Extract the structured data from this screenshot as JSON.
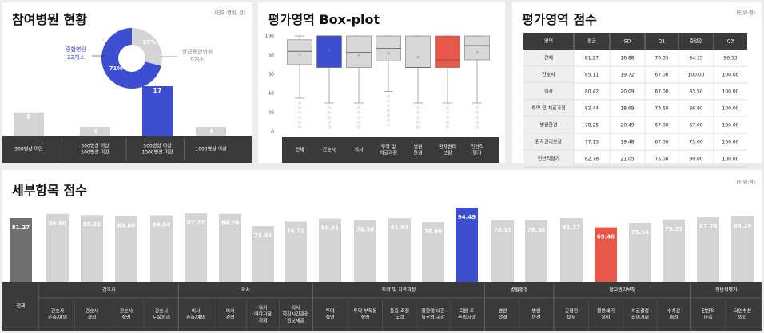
{
  "colors": {
    "blue": "#3d4fd1",
    "red": "#e9574a",
    "gray": "#d4d4d4",
    "dark": "#3a3a3a",
    "overall": "#707070"
  },
  "hospitals": {
    "title": "참여병원 현황",
    "unit": "(단위:병원, 건)",
    "donut_labels": {
      "general_name": "종합병원",
      "general_count": "22개소",
      "tertiary_name": "상급종합병원",
      "tertiary_count": "9개소",
      "general_pct": "71%",
      "tertiary_pct": "29%"
    }
  },
  "boxplot": {
    "title": "평가영역 Box-plot",
    "y_ticks": [
      "100",
      "80",
      "60",
      "40",
      "20",
      "0"
    ]
  },
  "score_table": {
    "title": "평가영역 점수",
    "unit": "(단위:점)",
    "columns": [
      "영역",
      "평균",
      "SD",
      "Q1",
      "중앙값",
      "Q3"
    ],
    "rows": [
      [
        "전체",
        "81.27",
        "16.88",
        "70.05",
        "84.15",
        "96.53"
      ],
      [
        "간호사",
        "85.11",
        "19.72",
        "67.00",
        "100.00",
        "100.00"
      ],
      [
        "의사",
        "80.42",
        "20.09",
        "67.00",
        "83.50",
        "100.00"
      ],
      [
        "투약 및 치료과정",
        "82.44",
        "18.69",
        "73.60",
        "86.80",
        "100.00"
      ],
      [
        "병원환경",
        "78.25",
        "20.49",
        "67.00",
        "67.00",
        "100.00"
      ],
      [
        "환자권리보장",
        "77.15",
        "19.48",
        "67.00",
        "75.00",
        "100.00"
      ],
      [
        "전반적평가",
        "82.78",
        "21.05",
        "75.00",
        "90.00",
        "100.00"
      ]
    ]
  },
  "detail": {
    "title": "세부항목 점수",
    "unit": "(단위:점)",
    "overall_label": "전체",
    "groups": [
      "간호사",
      "의사",
      "투약 및 치료과정",
      "병원환경",
      "환자권리보장",
      "전반적평가"
    ]
  },
  "chart_data": [
    {
      "type": "bar",
      "title": "참여병원 현황",
      "categories": [
        "300병상 미만",
        "300병상 이상 500병상 미만",
        "500병상 이상 1000병상 미만",
        "1000병상 이상"
      ],
      "values": [
        8,
        3,
        17,
        3
      ],
      "highlight": "500병상 이상 1000병상 미만"
    },
    {
      "type": "pie",
      "categories": [
        "종합병원",
        "상급종합병원"
      ],
      "values": [
        22,
        9
      ],
      "labels": [
        "71%",
        "29%"
      ]
    },
    {
      "type": "boxplot",
      "title": "평가영역 Box-plot",
      "categories": [
        "전체",
        "간호사",
        "의사",
        "투약 및 치료과정",
        "병원 환경",
        "환자권리 보장",
        "전반적 평가"
      ],
      "ylim": [
        0,
        100
      ],
      "boxes": [
        {
          "q1": 70,
          "median": 84,
          "q3": 96,
          "mean": 81,
          "whisker_low": 35,
          "whisker_high": 100,
          "color": "gray"
        },
        {
          "q1": 67,
          "median": 100,
          "q3": 100,
          "mean": 85,
          "whisker_low": 30,
          "whisker_high": 100,
          "color": "blue"
        },
        {
          "q1": 67,
          "median": 83,
          "q3": 100,
          "mean": 80,
          "whisker_low": 30,
          "whisker_high": 100,
          "color": "gray"
        },
        {
          "q1": 74,
          "median": 87,
          "q3": 100,
          "mean": 82,
          "whisker_low": 42,
          "whisker_high": 100,
          "color": "gray"
        },
        {
          "q1": 67,
          "median": 67,
          "q3": 100,
          "mean": 78,
          "whisker_low": 30,
          "whisker_high": 100,
          "color": "gray"
        },
        {
          "q1": 67,
          "median": 75,
          "q3": 100,
          "mean": 77,
          "whisker_low": 30,
          "whisker_high": 100,
          "color": "red"
        },
        {
          "q1": 75,
          "median": 90,
          "q3": 100,
          "mean": 83,
          "whisker_low": 30,
          "whisker_high": 100,
          "color": "gray"
        }
      ]
    },
    {
      "type": "bar",
      "title": "세부항목 점수",
      "categories": [
        "전체",
        "간호사 존중/예의",
        "간호사 경청",
        "간호사 설명",
        "간호사 도움처리",
        "의사 존중/예의",
        "의사 경청",
        "의사 이야기할 기회",
        "의사 회진시간관련 정보제공",
        "투약 설명",
        "투약 부작용 설명",
        "통증 조절 노력",
        "질환에 대한 위로와 공감",
        "퇴원 후 주의사항",
        "병원 청결",
        "병원 안전",
        "공평한 대우",
        "불만제기 용이",
        "치료결정 참여기회",
        "수치감 배려",
        "전반적 만족",
        "타인추천 의향"
      ],
      "values": [
        81.27,
        86.6,
        85.21,
        83.8,
        84.84,
        87.22,
        86.7,
        71.06,
        76.71,
        80.61,
        78.5,
        81.03,
        76.0,
        94.49,
        78.15,
        78.36,
        81.27,
        69.46,
        75.14,
        79.35,
        82.28,
        83.29
      ],
      "labels": [
        "81.27",
        "86.60",
        "85.21",
        "83.80",
        "84.84",
        "87.22",
        "86.70",
        "71.06",
        "76.71",
        "80.61",
        "78.50",
        "81.03",
        "76.00",
        "94.49",
        "78.15",
        "78.36",
        "81.27",
        "69.46",
        "75.14",
        "79.35",
        "82.28",
        "83.29"
      ],
      "highlight_max": "퇴원 후 주의사항",
      "highlight_min": "불만제기 용이"
    }
  ]
}
